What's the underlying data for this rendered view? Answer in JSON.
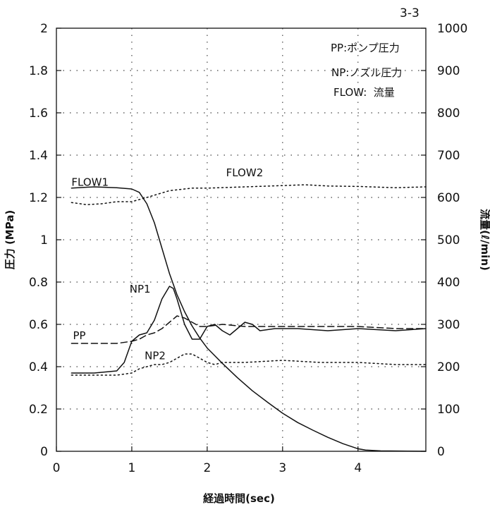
{
  "chart_data": {
    "type": "line",
    "page_label": "3-3",
    "xlabel": "経過時間(sec)",
    "ylabel_left": "圧力 (MPa)",
    "ylabel_right": "流量(ℓ/min)",
    "xlim": [
      0,
      4.9
    ],
    "ylim_left": [
      0,
      2
    ],
    "ylim_right": [
      0,
      1000
    ],
    "x_ticks": [
      "0",
      "1",
      "2",
      "3",
      "4"
    ],
    "y_left_ticks": [
      "0",
      "0.2",
      "0.4",
      "0.6",
      "0.8",
      "1",
      "1.2",
      "1.4",
      "1.6",
      "1.8",
      "2"
    ],
    "y_right_ticks": [
      "0",
      "100",
      "200",
      "300",
      "400",
      "500",
      "600",
      "700",
      "800",
      "900",
      "1000"
    ],
    "grid": "dotted",
    "legend_lines": [
      "PP:ポンプ圧力",
      "NP:ノズル圧力",
      "FLOW:  流量"
    ],
    "series": [
      {
        "name": "FLOW1",
        "axis": "right",
        "style": "solid",
        "x": [
          0.2,
          0.5,
          0.8,
          1.0,
          1.1,
          1.2,
          1.3,
          1.4,
          1.5,
          1.6,
          1.7,
          1.8,
          1.9,
          2.0,
          2.2,
          2.4,
          2.6,
          2.8,
          3.0,
          3.2,
          3.4,
          3.6,
          3.8,
          4.0,
          4.1,
          4.3,
          4.9
        ],
        "y": [
          622,
          625,
          623,
          620,
          612,
          585,
          540,
          480,
          420,
          370,
          330,
          296,
          268,
          244,
          208,
          174,
          143,
          116,
          90,
          68,
          50,
          33,
          18,
          6,
          3,
          1,
          0
        ]
      },
      {
        "name": "FLOW2",
        "axis": "right",
        "style": "dotted",
        "x": [
          0.2,
          0.4,
          0.6,
          0.8,
          1.0,
          1.2,
          1.5,
          1.8,
          2.0,
          2.5,
          3.0,
          3.3,
          3.6,
          4.0,
          4.5,
          4.9
        ],
        "y": [
          588,
          583,
          585,
          590,
          590,
          600,
          616,
          622,
          622,
          625,
          628,
          630,
          627,
          626,
          623,
          625
        ]
      },
      {
        "name": "NP1",
        "axis": "left",
        "style": "solid",
        "x": [
          0.2,
          0.5,
          0.8,
          0.9,
          1.0,
          1.1,
          1.2,
          1.3,
          1.4,
          1.5,
          1.55,
          1.6,
          1.7,
          1.8,
          1.9,
          2.0,
          2.1,
          2.2,
          2.3,
          2.4,
          2.5,
          2.6,
          2.7,
          2.9,
          3.2,
          3.6,
          4.0,
          4.5,
          4.9
        ],
        "y": [
          0.37,
          0.37,
          0.38,
          0.42,
          0.52,
          0.55,
          0.56,
          0.62,
          0.72,
          0.78,
          0.77,
          0.72,
          0.6,
          0.53,
          0.53,
          0.59,
          0.6,
          0.57,
          0.55,
          0.58,
          0.61,
          0.6,
          0.57,
          0.58,
          0.58,
          0.57,
          0.58,
          0.57,
          0.58
        ]
      },
      {
        "name": "PP",
        "axis": "left",
        "style": "dashed",
        "x": [
          0.2,
          0.5,
          0.8,
          1.0,
          1.1,
          1.2,
          1.3,
          1.4,
          1.5,
          1.6,
          1.7,
          1.8,
          1.9,
          2.0,
          2.2,
          2.5,
          3.0,
          3.5,
          4.0,
          4.5,
          4.9
        ],
        "y": [
          0.51,
          0.51,
          0.51,
          0.52,
          0.53,
          0.55,
          0.56,
          0.58,
          0.61,
          0.64,
          0.63,
          0.61,
          0.59,
          0.59,
          0.6,
          0.59,
          0.59,
          0.59,
          0.59,
          0.58,
          0.58
        ]
      },
      {
        "name": "NP2",
        "axis": "left",
        "style": "dotted",
        "x": [
          0.2,
          0.5,
          0.8,
          1.0,
          1.1,
          1.2,
          1.3,
          1.4,
          1.5,
          1.6,
          1.7,
          1.8,
          1.9,
          2.0,
          2.1,
          2.2,
          2.5,
          3.0,
          3.5,
          4.0,
          4.5,
          4.9
        ],
        "y": [
          0.36,
          0.36,
          0.36,
          0.37,
          0.39,
          0.4,
          0.41,
          0.41,
          0.42,
          0.44,
          0.46,
          0.46,
          0.44,
          0.42,
          0.41,
          0.42,
          0.42,
          0.43,
          0.42,
          0.42,
          0.41,
          0.41
        ]
      }
    ],
    "annotations": [
      {
        "text": "FLOW1",
        "x": 0.2,
        "y": 1.255,
        "axis": "left"
      },
      {
        "text": "FLOW2",
        "x": 2.25,
        "y": 1.3,
        "axis": "left"
      },
      {
        "text": "NP1",
        "x": 0.97,
        "y": 0.75,
        "axis": "left"
      },
      {
        "text": "PP",
        "x": 0.22,
        "y": 0.53,
        "axis": "left"
      },
      {
        "text": "NP2",
        "x": 1.17,
        "y": 0.435,
        "axis": "left"
      }
    ]
  }
}
